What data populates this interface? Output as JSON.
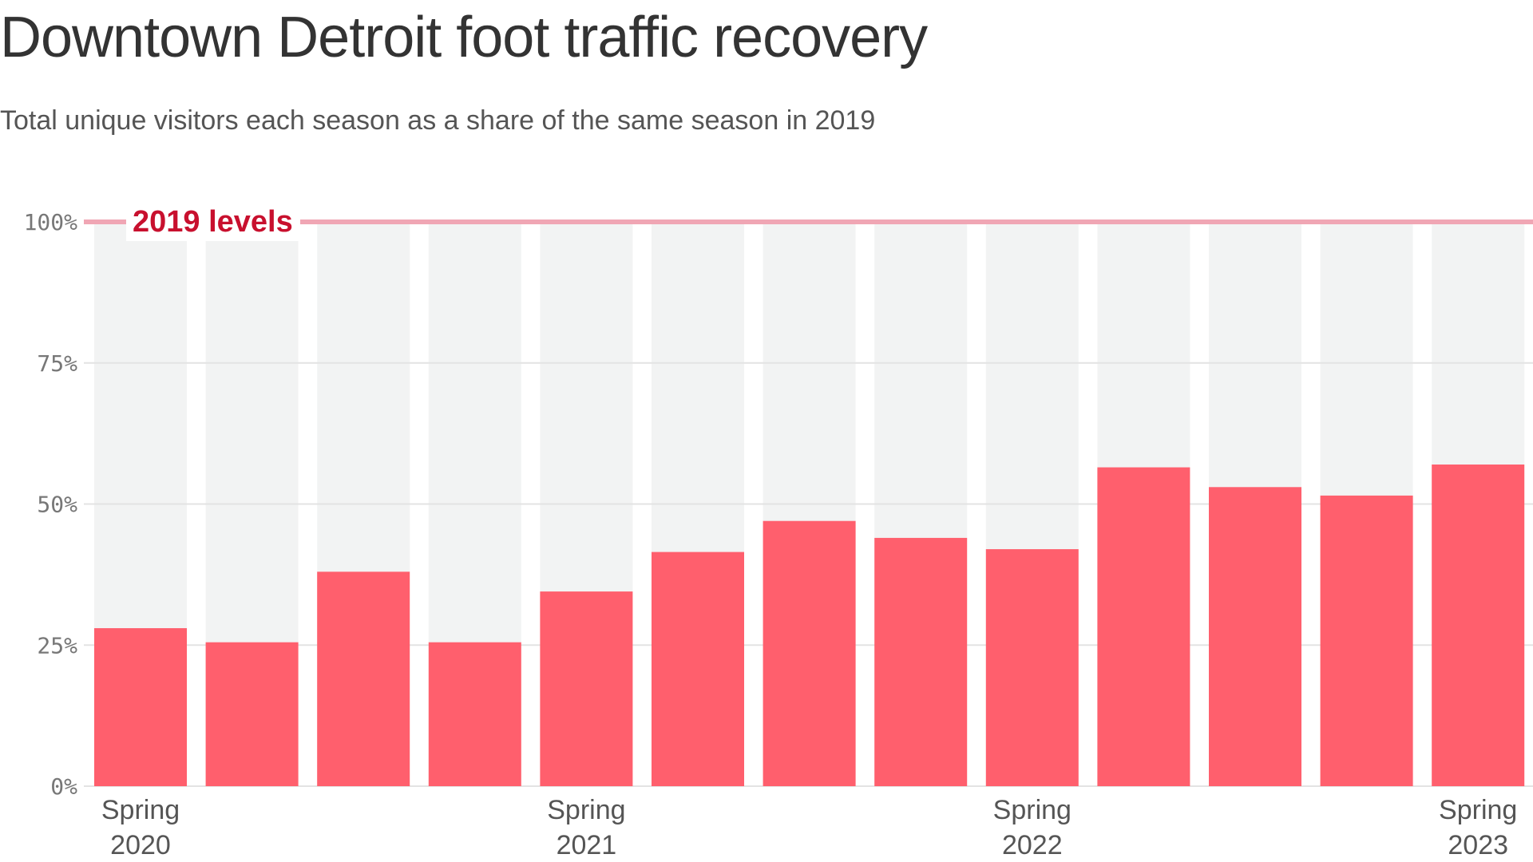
{
  "chart_data": {
    "type": "bar",
    "title": "Downtown Detroit foot traffic recovery",
    "subtitle": "Total unique visitors each season as a share of the same season in 2019",
    "xlabel": "",
    "ylabel": "",
    "ylim": [
      0,
      100
    ],
    "y_ticks": [
      {
        "value": 0,
        "label": "0%"
      },
      {
        "value": 25,
        "label": "25%"
      },
      {
        "value": 50,
        "label": "50%"
      },
      {
        "value": 75,
        "label": "75%"
      },
      {
        "value": 100,
        "label": "100%"
      }
    ],
    "x_tick_labels": [
      {
        "index": 0,
        "lines": [
          "Spring",
          "2020"
        ]
      },
      {
        "index": 4,
        "lines": [
          "Spring",
          "2021"
        ]
      },
      {
        "index": 8,
        "lines": [
          "Spring",
          "2022"
        ]
      },
      {
        "index": 12,
        "lines": [
          "Spring",
          "2023"
        ]
      }
    ],
    "values": [
      28,
      25.5,
      38,
      25.5,
      34.5,
      41.5,
      47,
      44,
      42,
      56.5,
      53,
      51.5,
      57
    ],
    "reference_line": {
      "value": 100,
      "label": "2019 levels"
    },
    "grid": true,
    "legend": "none",
    "colors": {
      "bar": "#ff5f6d",
      "bar_background": "#f2f3f3",
      "reference_line": "#f0a6b4",
      "reference_label": "#c8102e",
      "grid": "#e3e3e3",
      "tick_text": "#777777",
      "title_text": "#333333"
    }
  }
}
